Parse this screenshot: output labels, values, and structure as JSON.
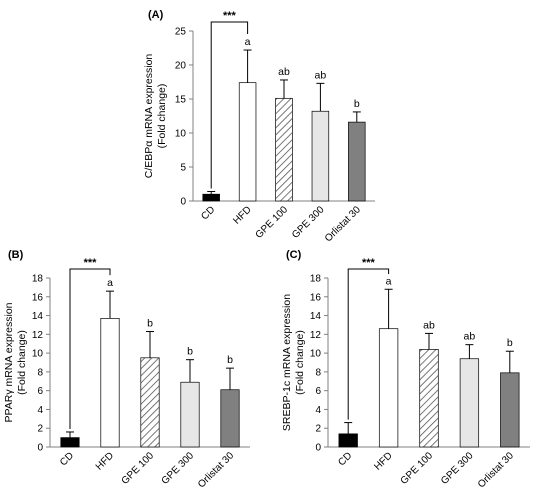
{
  "chart_data": [
    {
      "panel_label": "(A)",
      "type": "bar",
      "categories": [
        "CD",
        "HFD",
        "GPE 100",
        "GPE 300",
        "Orlistat 30"
      ],
      "values": [
        1.0,
        17.4,
        15.1,
        13.2,
        11.6
      ],
      "errors": [
        0.4,
        4.8,
        2.7,
        4.1,
        1.5
      ],
      "sig_letters": [
        "",
        "a",
        "ab",
        "ab",
        "b"
      ],
      "significance": {
        "from": "CD",
        "to": "HFD",
        "label": "***"
      },
      "ylabel_line1": "C/EBPα mRNA expression",
      "ylabel_line2": "(Fold change)",
      "ylim": [
        0,
        25
      ],
      "yticks": [
        0,
        5,
        10,
        15,
        20,
        25
      ]
    },
    {
      "panel_label": "(B)",
      "type": "bar",
      "categories": [
        "CD",
        "HFD",
        "GPE 100",
        "GPE 300",
        "Orlistat 30"
      ],
      "values": [
        1.0,
        13.7,
        9.5,
        6.9,
        6.1
      ],
      "errors": [
        0.6,
        2.9,
        2.8,
        2.4,
        2.3
      ],
      "sig_letters": [
        "",
        "a",
        "b",
        "b",
        "b"
      ],
      "significance": {
        "from": "CD",
        "to": "HFD",
        "label": "***"
      },
      "ylabel_line1": "PPARγ mRNA expression",
      "ylabel_line2": "(Fold change)",
      "ylim": [
        0,
        18
      ],
      "yticks": [
        0,
        2,
        4,
        6,
        8,
        10,
        12,
        14,
        16,
        18
      ]
    },
    {
      "panel_label": "(C)",
      "type": "bar",
      "categories": [
        "CD",
        "HFD",
        "GPE 100",
        "GPE 300",
        "Orlistat 30"
      ],
      "values": [
        1.4,
        12.6,
        10.4,
        9.4,
        7.9
      ],
      "errors": [
        1.2,
        4.2,
        1.7,
        1.5,
        2.3
      ],
      "sig_letters": [
        "",
        "a",
        "ab",
        "ab",
        "b"
      ],
      "significance": {
        "from": "CD",
        "to": "HFD",
        "label": "***"
      },
      "ylabel_line1": "SREBP-1c mRNA expression",
      "ylabel_line2": "(Fold change)",
      "ylim": [
        0,
        18
      ],
      "yticks": [
        0,
        2,
        4,
        6,
        8,
        10,
        12,
        14,
        16,
        18
      ]
    }
  ],
  "bar_styles": [
    {
      "fill": "#000000",
      "pattern": "none"
    },
    {
      "fill": "#ffffff",
      "pattern": "none"
    },
    {
      "fill": "#ffffff",
      "pattern": "diagonal-hatch"
    },
    {
      "fill": "#e6e6e6",
      "pattern": "none"
    },
    {
      "fill": "#808080",
      "pattern": "none"
    }
  ]
}
